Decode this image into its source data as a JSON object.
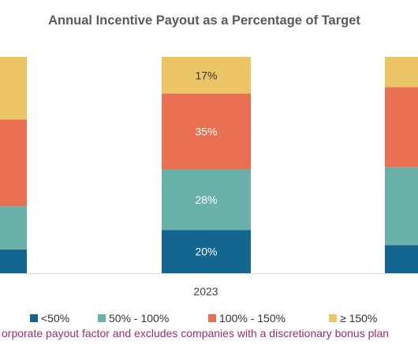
{
  "chart_data": {
    "type": "bar",
    "stacked": true,
    "title": "Annual Incentive Payout as a Percentage of Target",
    "categories": [
      "",
      "2023",
      ""
    ],
    "series": [
      {
        "name": "<50%",
        "color": "#12668f",
        "values": [
          null,
          20,
          null
        ]
      },
      {
        "name": "50% - 100%",
        "color": "#69b1a9",
        "values": [
          null,
          28,
          null
        ]
      },
      {
        "name": "100% - 150%",
        "color": "#e96f52",
        "values": [
          null,
          35,
          null
        ]
      },
      {
        "name": "≥ 150%",
        "color": "#ecc566",
        "values": [
          null,
          17,
          null
        ]
      }
    ],
    "data_labels": [
      [
        null,
        "20%",
        null
      ],
      [
        null,
        "28%",
        null
      ],
      [
        null,
        "35%",
        null
      ],
      [
        null,
        "17%",
        null
      ]
    ],
    "partial_bars": {
      "left": {
        "series_values": [
          11,
          20,
          40,
          29
        ]
      },
      "right": {
        "series_values": [
          13,
          36,
          37,
          14
        ]
      }
    },
    "ylim": [
      0,
      100
    ],
    "grid": false,
    "legend_position": "bottom"
  },
  "footnote": "orporate payout factor and excludes companies with a discretionary bonus plan"
}
